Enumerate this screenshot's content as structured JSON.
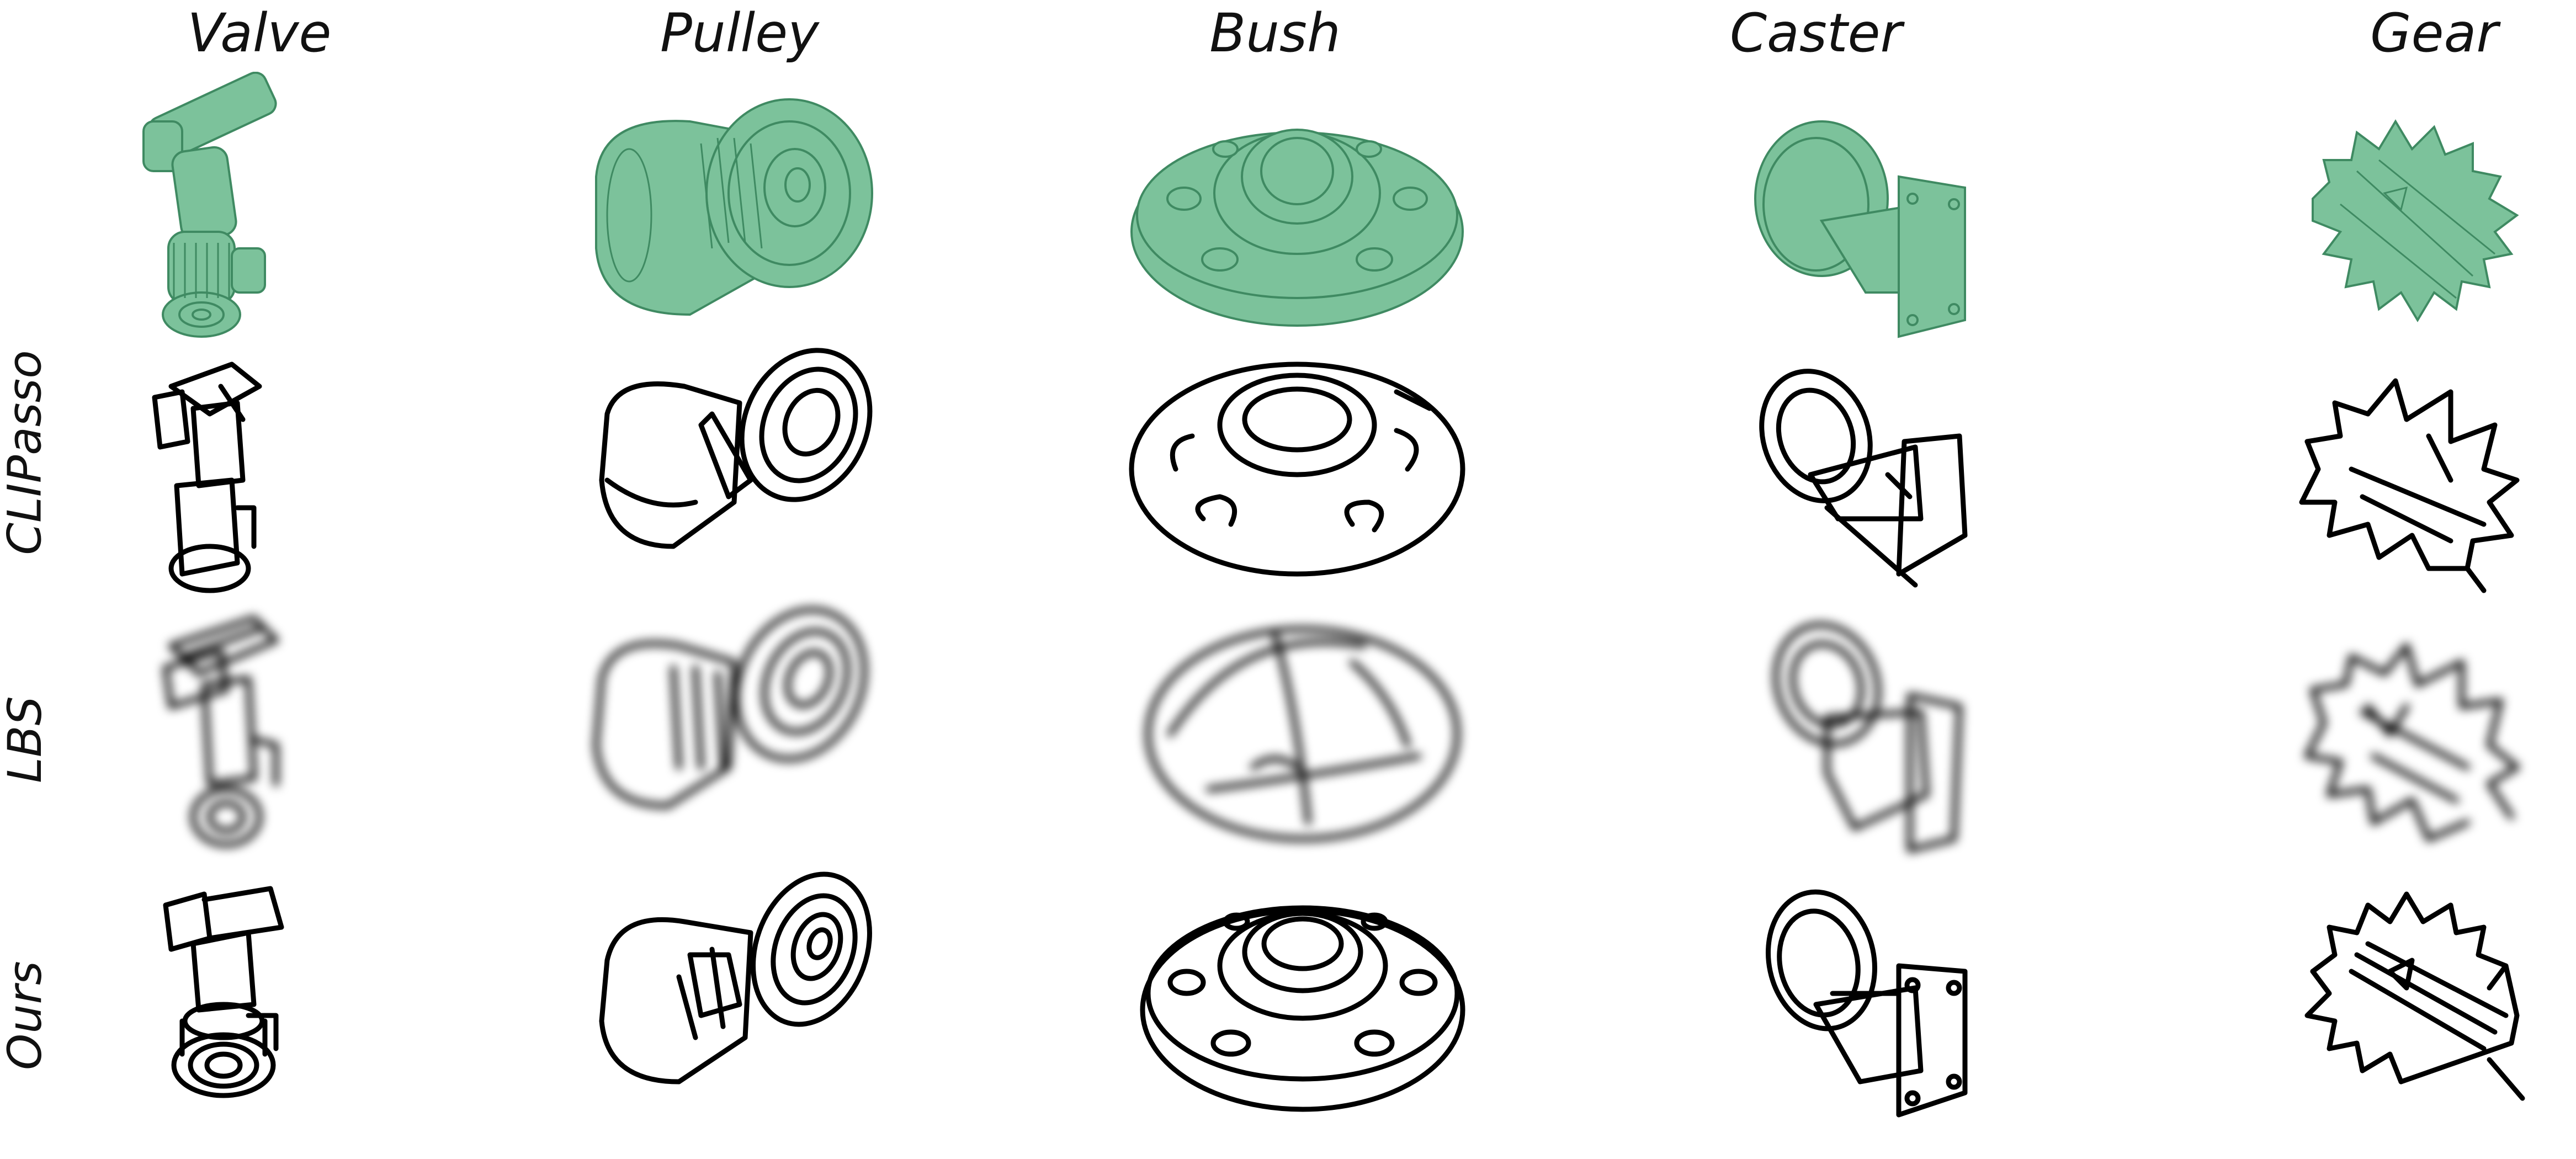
{
  "columns": [
    {
      "label": "Valve"
    },
    {
      "label": "Pulley"
    },
    {
      "label": "Bush"
    },
    {
      "label": "Caster"
    },
    {
      "label": "Gear"
    }
  ],
  "rows": [
    {
      "label": "CLIPasso"
    },
    {
      "label": "LBS"
    },
    {
      "label": "Ours"
    }
  ],
  "colors": {
    "model_fill": "#7cc29b",
    "model_stroke": "#3f8a62",
    "sketch_stroke": "#000000"
  }
}
